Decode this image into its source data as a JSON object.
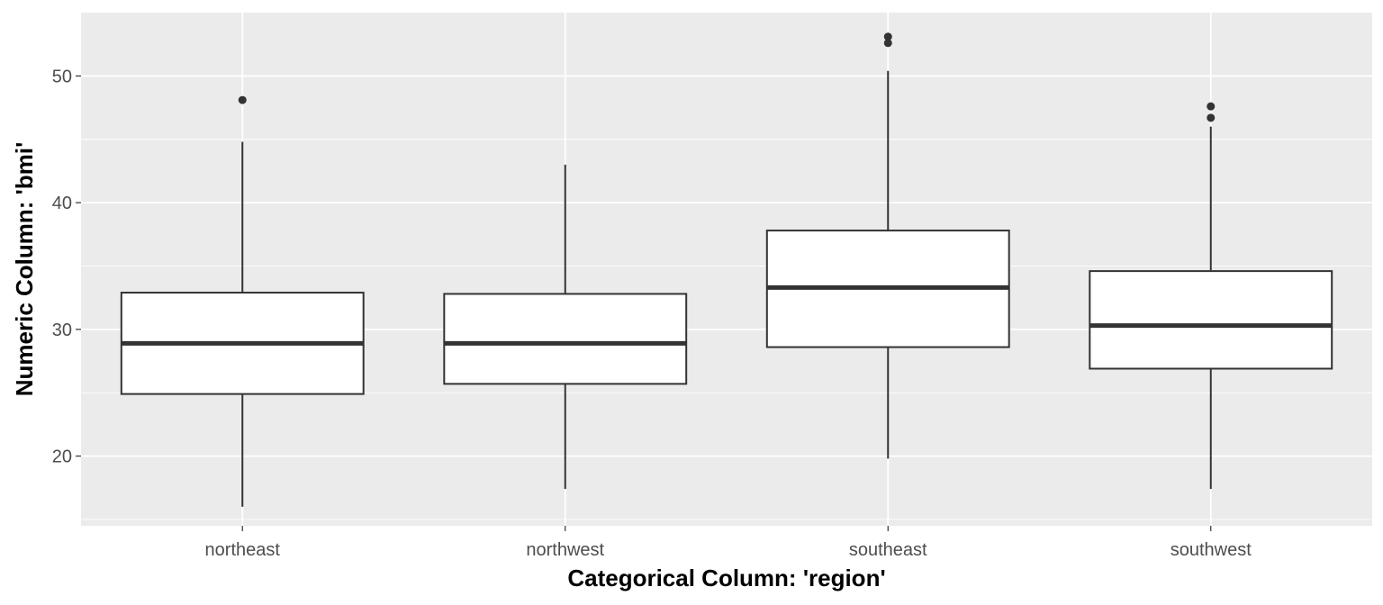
{
  "chart_data": {
    "type": "boxplot",
    "xlabel": "Categorical Column: 'region'",
    "ylabel": "Numeric Column: 'bmi'",
    "ylim": [
      14.5,
      55
    ],
    "y_major_ticks": [
      20,
      30,
      40,
      50
    ],
    "y_minor_ticks": [
      15,
      25,
      35,
      45
    ],
    "grid": true,
    "legend": "none",
    "categories": [
      "northeast",
      "northwest",
      "southeast",
      "southwest"
    ],
    "boxes": [
      {
        "category": "northeast",
        "min": 16.0,
        "q1": 24.9,
        "median": 28.9,
        "q3": 32.9,
        "max": 44.8,
        "outliers": [
          48.1
        ]
      },
      {
        "category": "northwest",
        "min": 17.4,
        "q1": 25.7,
        "median": 28.9,
        "q3": 32.8,
        "max": 43.0,
        "outliers": []
      },
      {
        "category": "southeast",
        "min": 19.8,
        "q1": 28.6,
        "median": 33.3,
        "q3": 37.8,
        "max": 50.4,
        "outliers": [
          52.6,
          53.1
        ]
      },
      {
        "category": "southwest",
        "min": 17.4,
        "q1": 26.9,
        "median": 30.3,
        "q3": 34.6,
        "max": 46.0,
        "outliers": [
          46.7,
          47.6
        ]
      }
    ],
    "colors": {
      "panel": "#ebebeb",
      "box_fill": "#ffffff",
      "line": "#333333"
    }
  }
}
